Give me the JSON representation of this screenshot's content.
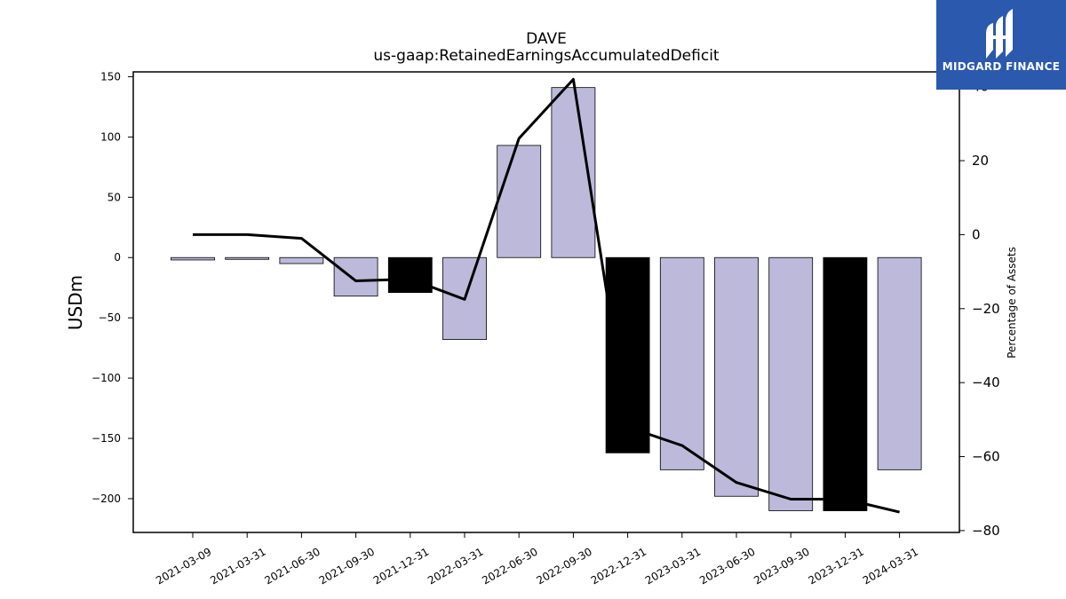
{
  "chart_data": {
    "type": "bar",
    "title": "DAVE",
    "subtitle": "us-gaap:RetainedEarningsAccumulatedDeficit",
    "ylabel": "USDm",
    "y2label": "Percentage of Assets",
    "categories": [
      "2021-03-09",
      "2021-03-31",
      "2021-06-30",
      "2021-09-30",
      "2021-12-31",
      "2022-03-31",
      "2022-06-30",
      "2022-09-30",
      "2022-12-31",
      "2023-03-31",
      "2023-06-30",
      "2023-09-30",
      "2023-12-31",
      "2024-03-31"
    ],
    "series": [
      {
        "type": "bar",
        "axis": "left",
        "values": [
          -2,
          -1.5,
          -5,
          -32,
          -29,
          -68,
          93,
          141,
          -162,
          -176,
          -198,
          -210,
          -210,
          -176
        ],
        "highlight": [
          false,
          false,
          false,
          false,
          true,
          false,
          false,
          false,
          true,
          false,
          false,
          false,
          true,
          false
        ]
      },
      {
        "type": "line",
        "axis": "right",
        "values": [
          0,
          0,
          -1,
          -12.5,
          -12,
          -17.5,
          26,
          42,
          -52,
          -57,
          -67,
          -71.5,
          -71.5,
          -75
        ]
      }
    ],
    "ylim": [
      -228,
      154
    ],
    "y2lim": [
      -80.5,
      44
    ],
    "yticks": [
      "150",
      "100",
      "50",
      "0",
      "−50",
      "−100",
      "−150",
      "−200"
    ],
    "yticks_values": [
      150,
      100,
      50,
      0,
      -50,
      -100,
      -150,
      -200
    ],
    "y2ticks": [
      "40",
      "20",
      "0",
      "−20",
      "−40",
      "−60",
      "−80"
    ],
    "y2ticks_values": [
      40,
      20,
      0,
      -20,
      -40,
      -60,
      -80
    ],
    "colors": {
      "bar": "#bcb9da",
      "highlight": "#000000",
      "line": "#000000",
      "edge": "#000000"
    },
    "grid": false
  },
  "logo": {
    "text": "MIDGARD FINANCE",
    "bg": "#2b59ad"
  }
}
